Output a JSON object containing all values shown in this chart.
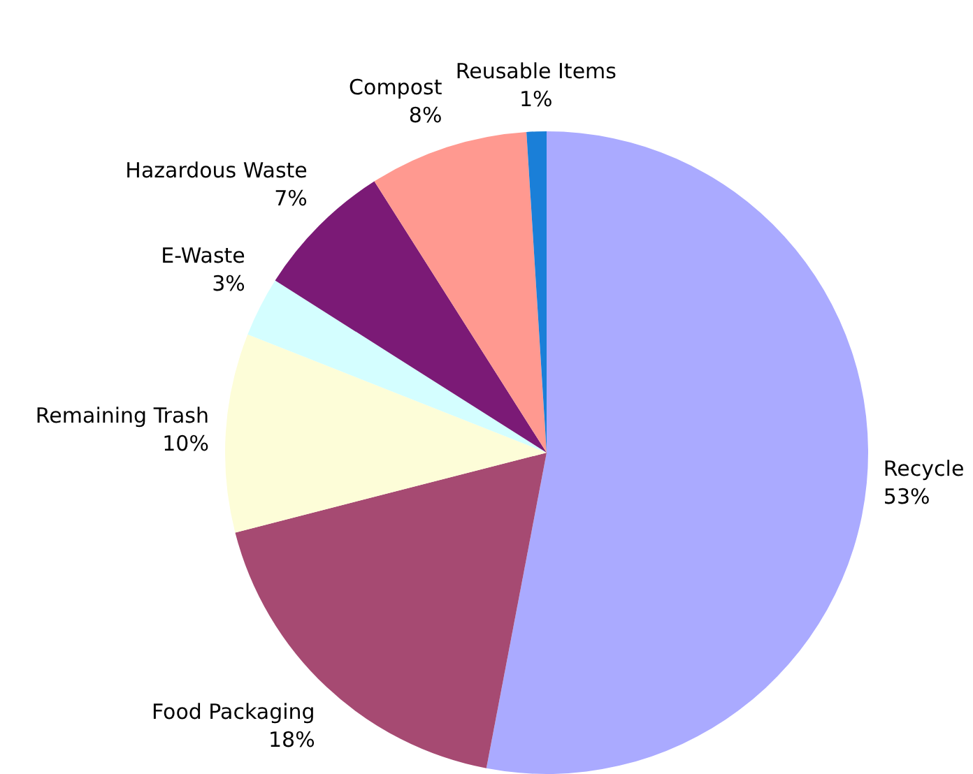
{
  "chart_data": {
    "type": "pie",
    "categories": [
      "Recycle",
      "Food Packaging",
      "Remaining Trash",
      "E-Waste",
      "Hazardous Waste",
      "Compost",
      "Reusable Items"
    ],
    "values": [
      53,
      18,
      10,
      3,
      7,
      8,
      1
    ],
    "value_labels": [
      "53%",
      "18%",
      "10%",
      "3%",
      "7%",
      "8%",
      "1%"
    ],
    "colors": [
      "#aaaaff",
      "#a64a72",
      "#fdfdd8",
      "#d4feff",
      "#7b1a76",
      "#ff9990",
      "#1a7fd8"
    ],
    "legend": false
  }
}
